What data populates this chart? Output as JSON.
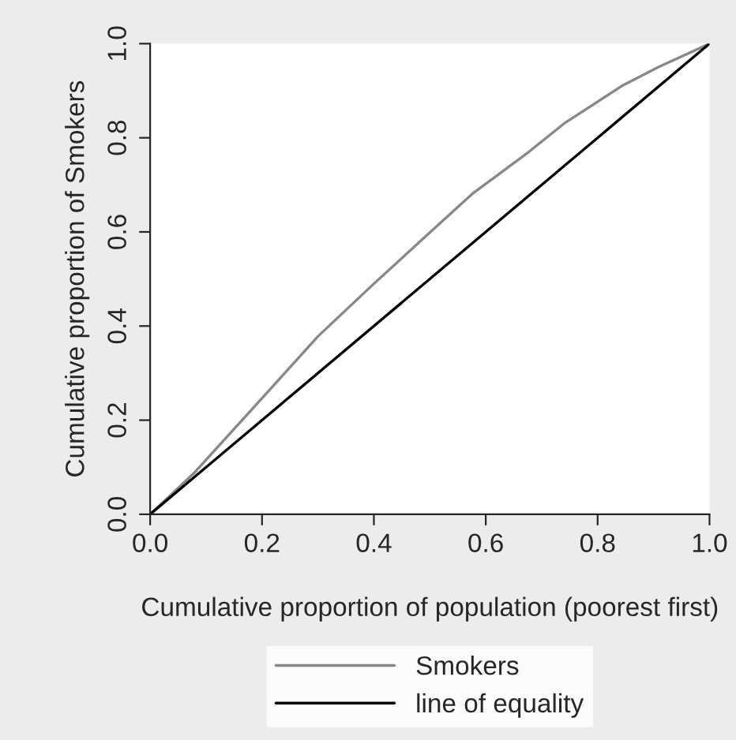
{
  "chart_data": {
    "type": "line",
    "xlabel": "Cumulative proportion of population (poorest first)",
    "ylabel": "Cumulative proportion of Smokers",
    "xlim": [
      0,
      1
    ],
    "ylim": [
      0,
      1
    ],
    "xticks": [
      {
        "value": 0,
        "label": "0.0"
      },
      0.2,
      0.4,
      0.6,
      0.8,
      {
        "value": 1,
        "label": "1.0"
      }
    ],
    "yticks": [
      {
        "value": 0,
        "label": "0.0"
      },
      0.2,
      0.4,
      0.6,
      0.8,
      {
        "value": 1,
        "label": "1.0"
      }
    ],
    "legend": "bottom",
    "grid": false,
    "series": [
      {
        "name": "Smokers",
        "color": "#888888",
        "x": [
          0,
          0.078,
          0.198,
          0.3,
          0.4,
          0.493,
          0.576,
          0.677,
          0.742,
          0.843,
          0.908,
          1
        ],
        "values": [
          0,
          0.087,
          0.244,
          0.378,
          0.49,
          0.591,
          0.681,
          0.77,
          0.832,
          0.91,
          0.95,
          1
        ]
      },
      {
        "name": "line of equality",
        "color": "#000000",
        "x": [
          0,
          1
        ],
        "values": [
          0,
          1
        ]
      }
    ]
  }
}
